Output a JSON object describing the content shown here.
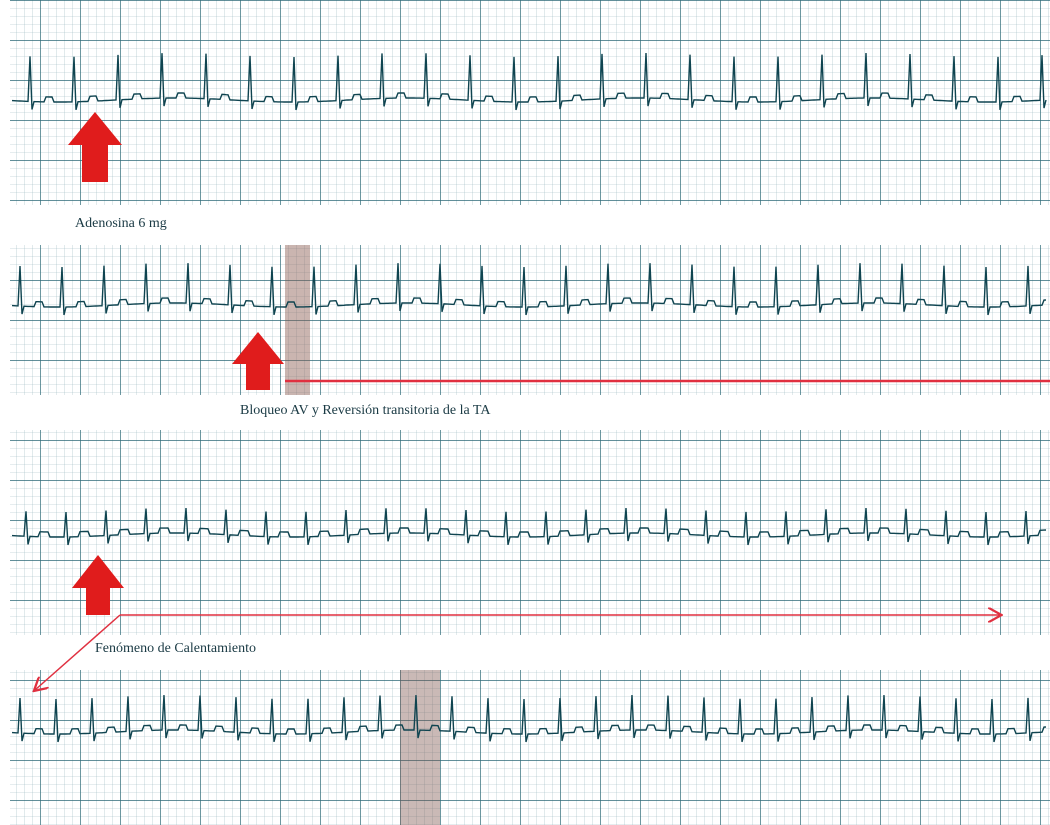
{
  "annotations": {
    "adenosine": "Adenosina 6 mg",
    "av_block": "Bloqueo AV y Reversión transitoria de la TA",
    "warmup": "Fenómeno de Calentamiento"
  }
}
